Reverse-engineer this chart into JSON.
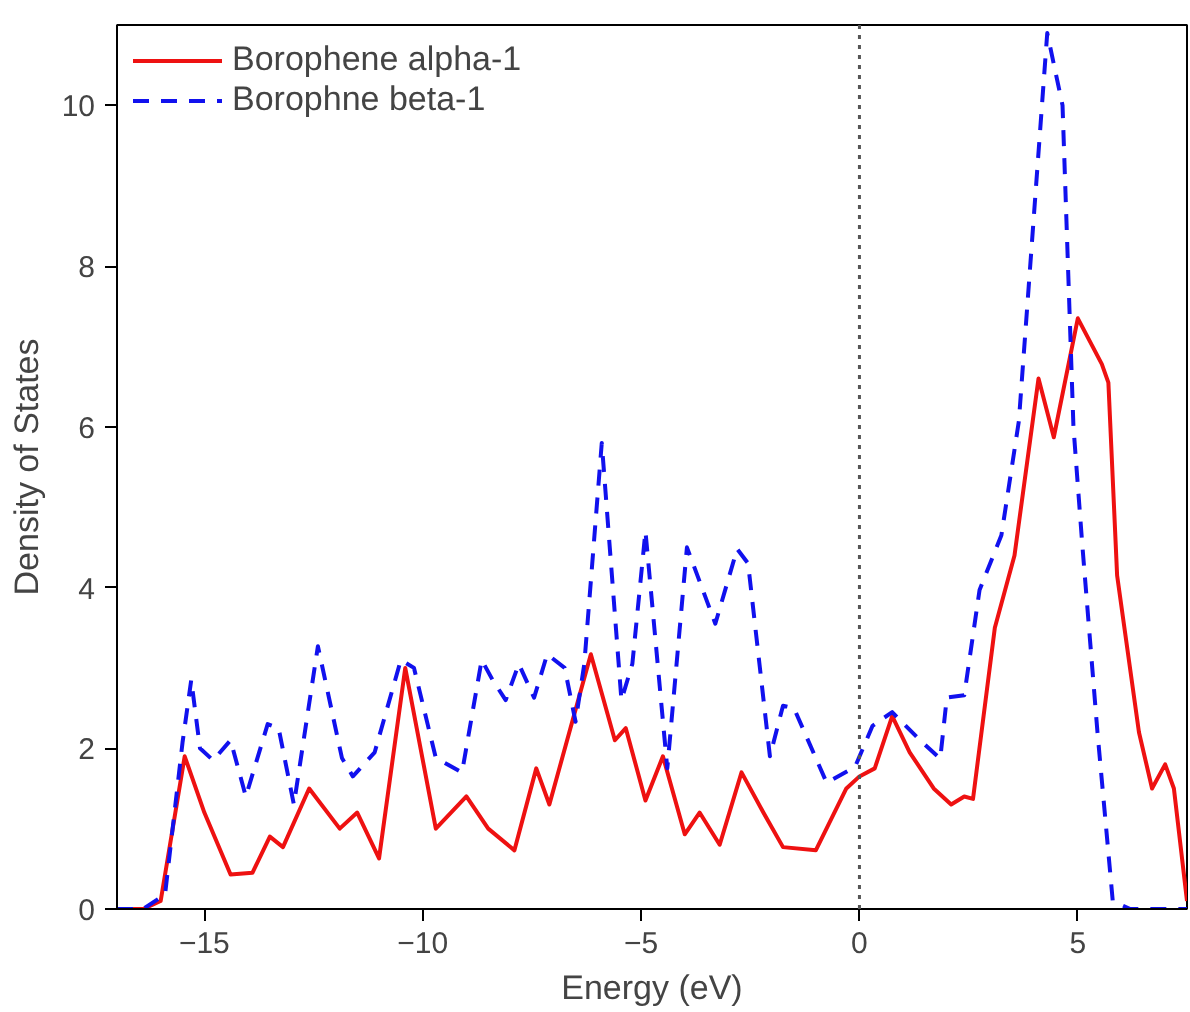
{
  "chart_data": {
    "type": "line",
    "xlabel": "Energy (eV)",
    "ylabel": "Density of States",
    "xlim": [
      -17,
      7.5
    ],
    "ylim": [
      0,
      11
    ],
    "xticks": [
      -15,
      -10,
      -5,
      0,
      5
    ],
    "yticks": [
      0,
      2,
      4,
      6,
      8,
      10
    ],
    "grid": false,
    "legend": "top left",
    "marker": "none",
    "ref_lines": [
      {
        "axis": "x",
        "value": 0,
        "color": "#555555",
        "line_style": "dotted"
      }
    ],
    "series": [
      {
        "name": "Borophene alpha-1",
        "color": "#ee1111",
        "line_style": "solid",
        "x": [
          -17,
          -16.4,
          -16.0,
          -15.45,
          -15.0,
          -14.4,
          -13.9,
          -13.5,
          -13.2,
          -12.6,
          -11.9,
          -11.5,
          -11.0,
          -10.4,
          -9.7,
          -9.0,
          -8.5,
          -7.9,
          -7.4,
          -7.1,
          -6.15,
          -5.6,
          -5.35,
          -4.9,
          -4.5,
          -4.0,
          -3.66,
          -3.2,
          -2.7,
          -2.2,
          -1.75,
          -1.0,
          -0.3,
          0.0,
          0.35,
          0.75,
          1.15,
          1.7,
          2.1,
          2.4,
          2.6,
          3.1,
          3.55,
          4.1,
          4.45,
          5.0,
          5.55,
          5.7,
          5.9,
          6.4,
          6.7,
          7.0,
          7.2,
          7.5
        ],
        "values": [
          0,
          0,
          0.1,
          1.9,
          1.2,
          0.43,
          0.45,
          0.9,
          0.77,
          1.5,
          1.0,
          1.2,
          0.63,
          3.0,
          1.0,
          1.4,
          1.0,
          0.73,
          1.75,
          1.3,
          3.17,
          2.1,
          2.25,
          1.35,
          1.9,
          0.93,
          1.2,
          0.8,
          1.7,
          1.2,
          0.77,
          0.73,
          1.5,
          1.65,
          1.75,
          2.4,
          1.95,
          1.5,
          1.3,
          1.4,
          1.37,
          3.5,
          4.4,
          6.6,
          5.87,
          7.35,
          6.78,
          6.55,
          4.15,
          2.2,
          1.5,
          1.8,
          1.5,
          0.1
        ]
      },
      {
        "name": "Borophne beta-1",
        "color": "#1111ee",
        "line_style": "dashed",
        "x": [
          -17,
          -16.4,
          -15.9,
          -15.5,
          -15.3,
          -15.1,
          -14.8,
          -14.4,
          -14.05,
          -13.55,
          -13.3,
          -12.95,
          -12.4,
          -11.85,
          -11.6,
          -11.1,
          -10.5,
          -10.2,
          -9.7,
          -9.1,
          -8.65,
          -8.4,
          -8.1,
          -7.8,
          -7.45,
          -7.15,
          -6.75,
          -6.5,
          -6.3,
          -5.9,
          -5.45,
          -5.2,
          -4.9,
          -4.4,
          -3.95,
          -3.3,
          -2.8,
          -2.55,
          -2.05,
          -1.75,
          -1.5,
          -0.75,
          -0.1,
          0.3,
          0.75,
          1.35,
          1.85,
          2.0,
          2.4,
          2.75,
          3.25,
          3.65,
          4.3,
          4.65,
          4.9,
          5.1,
          5.45,
          5.8,
          6.2,
          7.5
        ],
        "values": [
          0,
          0,
          0.18,
          2.07,
          2.85,
          2.0,
          1.85,
          2.1,
          1.4,
          2.3,
          2.25,
          1.3,
          3.27,
          1.88,
          1.65,
          1.95,
          3.1,
          3.0,
          1.88,
          1.7,
          3.1,
          2.85,
          2.6,
          3.05,
          2.63,
          3.17,
          3.0,
          2.33,
          3.05,
          5.8,
          2.6,
          3.05,
          4.7,
          1.75,
          4.5,
          3.55,
          4.48,
          4.3,
          1.9,
          2.53,
          2.5,
          1.57,
          1.77,
          2.28,
          2.45,
          2.12,
          1.87,
          2.63,
          2.66,
          3.97,
          4.65,
          6.07,
          10.9,
          10.0,
          6.0,
          4.55,
          2.2,
          0.1,
          0,
          0
        ]
      }
    ]
  }
}
